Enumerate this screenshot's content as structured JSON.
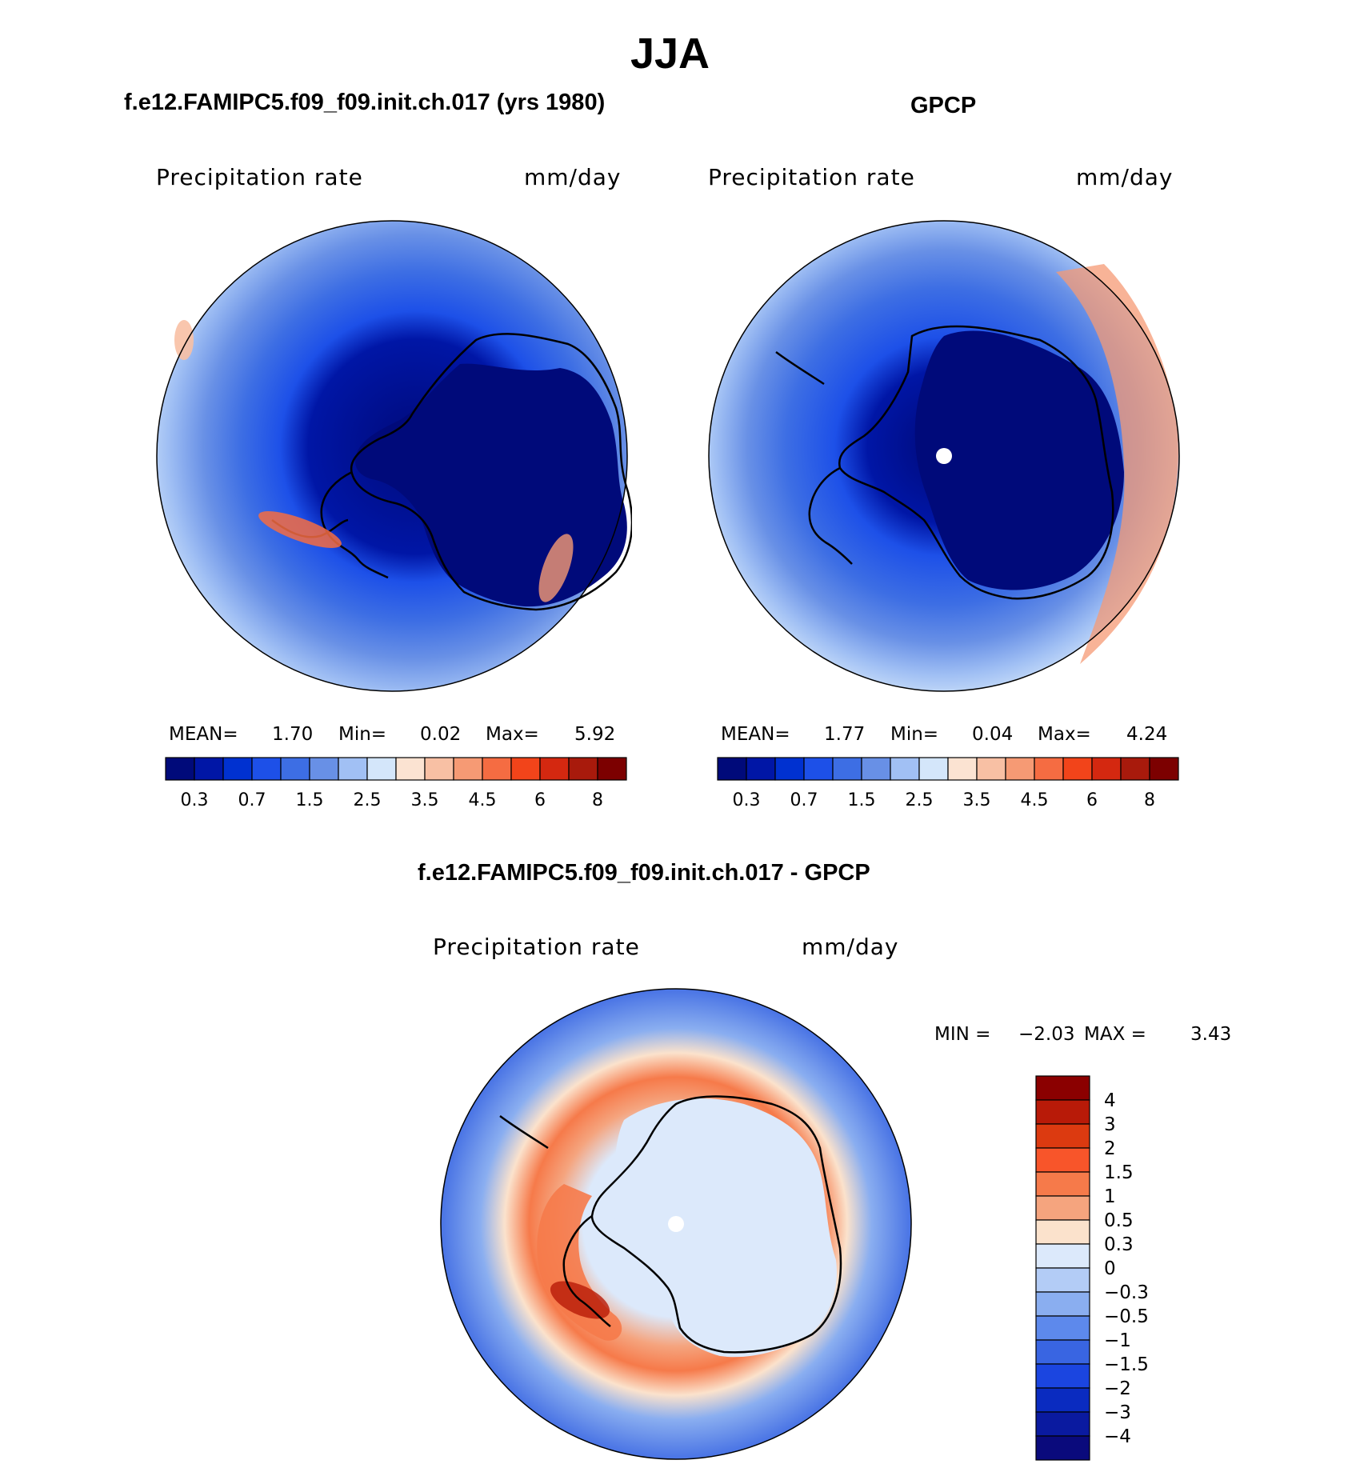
{
  "title": "JJA",
  "panels": [
    {
      "id": "model",
      "subtitle": "f.e12.FAMIPC5.f09_f09.init.ch.017 (yrs 1980)",
      "variable": "Precipitation  rate",
      "units": "mm/day",
      "stats": {
        "mean_label": "MEAN=",
        "mean": "1.70",
        "min_label": "Min=",
        "min": "0.02",
        "max_label": "Max=",
        "max": "5.92"
      }
    },
    {
      "id": "obs",
      "subtitle": "GPCP",
      "variable": "Precipitation  rate",
      "units": "mm/day",
      "stats": {
        "mean_label": "MEAN=",
        "mean": "1.77",
        "min_label": "Min=",
        "min": "0.04",
        "max_label": "Max=",
        "max": "4.24"
      }
    },
    {
      "id": "diff",
      "subtitle": "f.e12.FAMIPC5.f09_f09.init.ch.017 - GPCP",
      "variable": "Precipitation  rate",
      "units": "mm/day",
      "stats": {
        "min_label": "MIN =",
        "min": "−2.03",
        "max_label": "MAX =",
        "max": "3.43"
      }
    }
  ],
  "colorbars": {
    "abs_colors": [
      "#000a7a",
      "#0016a6",
      "#0031d0",
      "#1d50e8",
      "#3d6ee4",
      "#6890e6",
      "#a1c0f4",
      "#d4e6fa",
      "#fbe3d2",
      "#f8c0a4",
      "#f69a74",
      "#f56c42",
      "#f2441a",
      "#d42810",
      "#a81a0c",
      "#7c0000"
    ],
    "abs_ticks": [
      "0.3",
      "0.7",
      "1.5",
      "2.5",
      "3.5",
      "4.5",
      "6",
      "8"
    ],
    "diff_colors": [
      "#8b0000",
      "#b81a08",
      "#dc3a10",
      "#f8552a",
      "#f67a4a",
      "#f5a47e",
      "#fbe2cc",
      "#dce9fb",
      "#b3ccf6",
      "#8aaef0",
      "#5d89ec",
      "#3965e2",
      "#1b45e0",
      "#0a2bc0",
      "#0a1aa0",
      "#0a0a7c"
    ],
    "diff_ticks": [
      "4",
      "3",
      "2",
      "1.5",
      "1",
      "0.5",
      "0.3",
      "0",
      "−0.3",
      "−0.5",
      "−1",
      "−1.5",
      "−2",
      "−3",
      "−4"
    ]
  }
}
